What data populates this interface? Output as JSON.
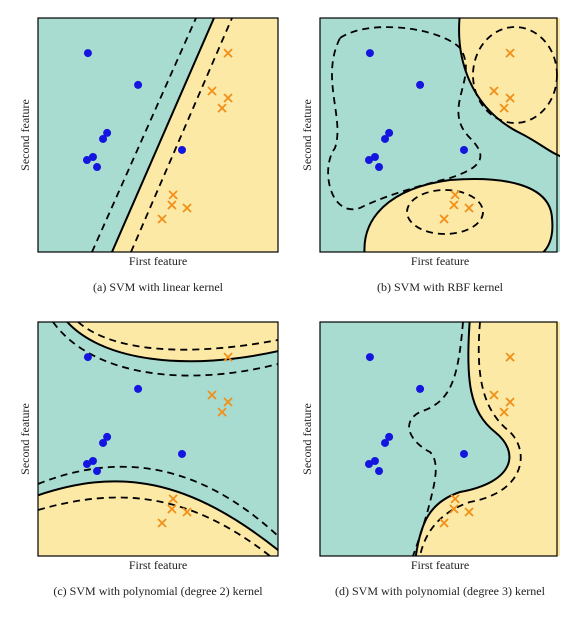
{
  "chart_data": [
    {
      "type": "scatter",
      "title": "(a) SVM with linear kernel",
      "xlabel": "First feature",
      "ylabel": "Second feature",
      "xlim": [
        0,
        10
      ],
      "ylim": [
        0,
        10
      ],
      "series": [
        {
          "color": "#1515e0",
          "marker": "circle",
          "x": [
            2.08,
            4.17,
            2.88,
            2.71,
            2.29,
            2.04,
            2.46,
            6.0
          ],
          "y": [
            8.5,
            7.14,
            5.09,
            4.83,
            4.06,
            3.93,
            3.63,
            4.36
          ]
        },
        {
          "color": "#f0901a",
          "marker": "x",
          "x": [
            7.92,
            7.25,
            7.92,
            7.67,
            5.63,
            5.58,
            6.21,
            5.17
          ],
          "y": [
            8.5,
            6.88,
            6.58,
            6.15,
            2.44,
            2.01,
            1.88,
            1.41
          ]
        }
      ]
    },
    {
      "type": "scatter",
      "title": "(b) SVM with RBF kernel",
      "xlabel": "First feature",
      "ylabel": "Second feature",
      "xlim": [
        0,
        10
      ],
      "ylim": [
        0,
        10
      ],
      "series": [
        {
          "color": "#1515e0",
          "marker": "circle",
          "x": [
            2.08,
            4.17,
            2.88,
            2.71,
            2.29,
            2.04,
            2.46,
            6.0
          ],
          "y": [
            8.5,
            7.14,
            5.09,
            4.83,
            4.06,
            3.93,
            3.63,
            4.36
          ]
        },
        {
          "color": "#f0901a",
          "marker": "x",
          "x": [
            7.92,
            7.25,
            7.92,
            7.67,
            5.63,
            5.58,
            6.21,
            5.17
          ],
          "y": [
            8.5,
            6.88,
            6.58,
            6.15,
            2.44,
            2.01,
            1.88,
            1.41
          ]
        }
      ]
    },
    {
      "type": "scatter",
      "title": "(c) SVM with polynomial (degree 2) kernel",
      "xlabel": "First feature",
      "ylabel": "Second feature",
      "xlim": [
        0,
        10
      ],
      "ylim": [
        0,
        10
      ],
      "series": [
        {
          "color": "#1515e0",
          "marker": "circle",
          "x": [
            2.08,
            4.17,
            2.88,
            2.71,
            2.29,
            2.04,
            2.46,
            6.0
          ],
          "y": [
            8.5,
            7.14,
            5.09,
            4.83,
            4.06,
            3.93,
            3.63,
            4.36
          ]
        },
        {
          "color": "#f0901a",
          "marker": "x",
          "x": [
            7.92,
            7.25,
            7.92,
            7.67,
            5.63,
            5.58,
            6.21,
            5.17
          ],
          "y": [
            8.5,
            6.88,
            6.58,
            6.15,
            2.44,
            2.01,
            1.88,
            1.41
          ]
        }
      ]
    },
    {
      "type": "scatter",
      "title": "(d) SVM with polynomial (degree 3) kernel",
      "xlabel": "First feature",
      "ylabel": "Second feature",
      "xlim": [
        0,
        10
      ],
      "ylim": [
        0,
        10
      ],
      "series": [
        {
          "color": "#1515e0",
          "marker": "circle",
          "x": [
            2.08,
            4.17,
            2.88,
            2.71,
            2.29,
            2.04,
            2.46,
            6.0
          ],
          "y": [
            8.5,
            7.14,
            5.09,
            4.83,
            4.06,
            3.93,
            3.63,
            4.36
          ]
        },
        {
          "color": "#f0901a",
          "marker": "x",
          "x": [
            7.92,
            7.25,
            7.92,
            7.67,
            5.63,
            5.58,
            6.21,
            5.17
          ],
          "y": [
            8.5,
            6.88,
            6.58,
            6.15,
            2.44,
            2.01,
            1.88,
            1.41
          ]
        }
      ]
    }
  ]
}
